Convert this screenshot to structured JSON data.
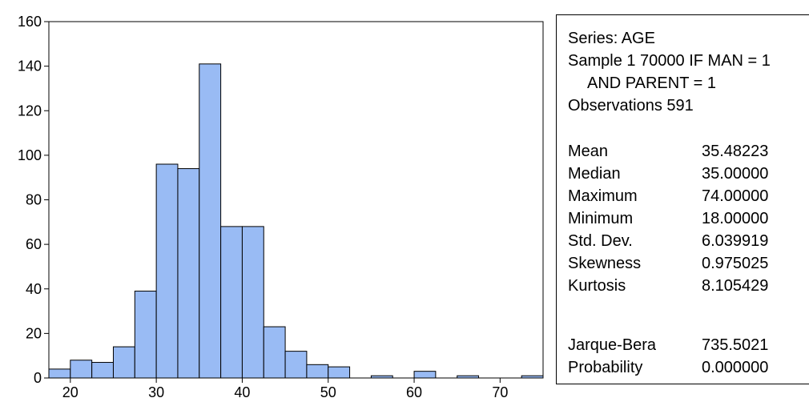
{
  "chart_data": {
    "type": "bar",
    "title": "",
    "xlabel": "",
    "ylabel": "",
    "bin_width": 2.5,
    "bins": [
      {
        "start": 17.5,
        "count": 4
      },
      {
        "start": 20.0,
        "count": 8
      },
      {
        "start": 22.5,
        "count": 7
      },
      {
        "start": 25.0,
        "count": 14
      },
      {
        "start": 27.5,
        "count": 39
      },
      {
        "start": 30.0,
        "count": 96
      },
      {
        "start": 32.5,
        "count": 94
      },
      {
        "start": 35.0,
        "count": 141
      },
      {
        "start": 37.5,
        "count": 68
      },
      {
        "start": 40.0,
        "count": 68
      },
      {
        "start": 42.5,
        "count": 23
      },
      {
        "start": 45.0,
        "count": 12
      },
      {
        "start": 47.5,
        "count": 6
      },
      {
        "start": 50.0,
        "count": 5
      },
      {
        "start": 52.5,
        "count": 0
      },
      {
        "start": 55.0,
        "count": 1
      },
      {
        "start": 57.5,
        "count": 0
      },
      {
        "start": 60.0,
        "count": 3
      },
      {
        "start": 62.5,
        "count": 0
      },
      {
        "start": 65.0,
        "count": 1
      },
      {
        "start": 67.5,
        "count": 0
      },
      {
        "start": 70.0,
        "count": 0
      },
      {
        "start": 72.5,
        "count": 1
      }
    ],
    "xlim": [
      17.5,
      75
    ],
    "ylim": [
      0,
      160
    ],
    "xticks": [
      20,
      30,
      40,
      50,
      60,
      70
    ],
    "yticks": [
      0,
      20,
      40,
      60,
      80,
      100,
      120,
      140,
      160
    ],
    "grid": false,
    "bar_color": "#99bbf4"
  },
  "stats": {
    "series": "Series: AGE",
    "sample_line1": "Sample 1 70000 IF MAN = 1",
    "sample_line2": "AND PARENT = 1",
    "observations": "Observations 591",
    "rows": [
      {
        "label": "Mean",
        "value": "35.48223"
      },
      {
        "label": "Median",
        "value": "35.00000"
      },
      {
        "label": "Maximum",
        "value": "74.00000"
      },
      {
        "label": "Minimum",
        "value": "18.00000"
      },
      {
        "label": "Std. Dev.",
        "value": "6.039919"
      },
      {
        "label": "Skewness",
        "value": "0.975025"
      },
      {
        "label": "Kurtosis",
        "value": "8.105429"
      }
    ],
    "tests": [
      {
        "label": "Jarque-Bera",
        "value": "735.5021"
      },
      {
        "label": "Probability",
        "value": "0.000000"
      }
    ]
  }
}
